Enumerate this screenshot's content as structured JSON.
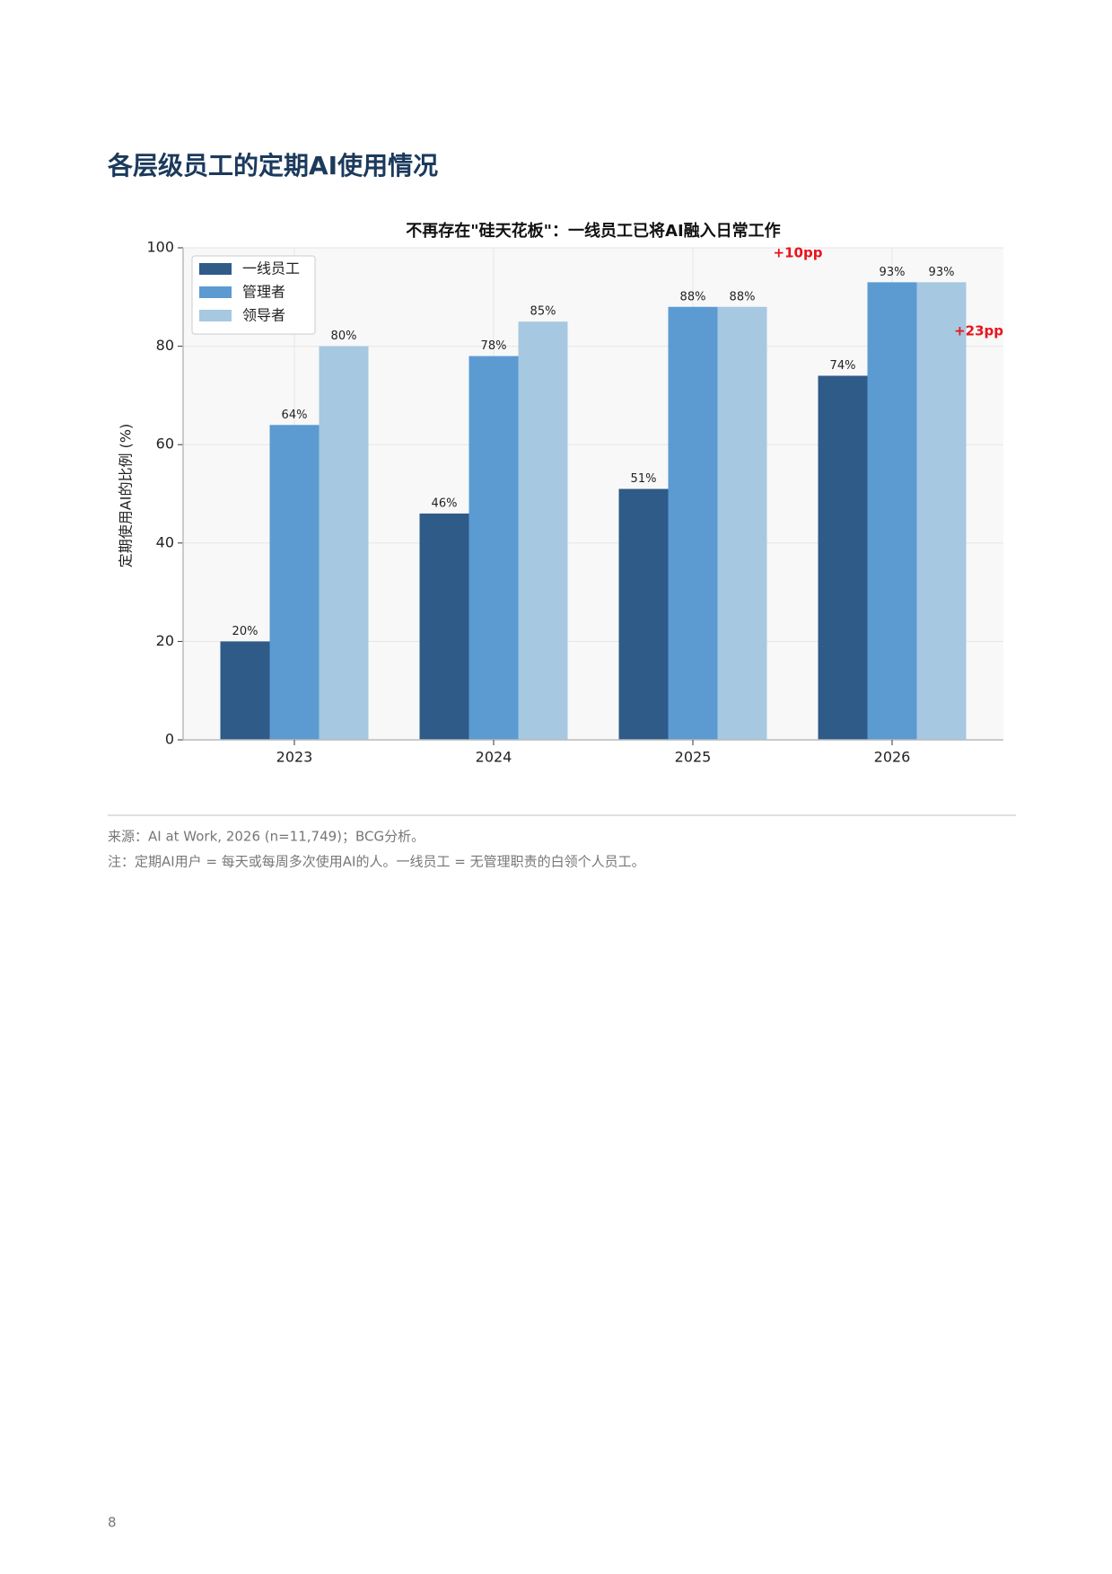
{
  "heading": "各层级员工的定期AI使用情况",
  "chart_data": {
    "type": "bar",
    "title": "不再存在\"硅天花板\"：一线员工已将AI融入日常工作",
    "y_label": "定期使用AI的比例 (%)",
    "categories": [
      "2023",
      "2024",
      "2025",
      "2026"
    ],
    "series": [
      {
        "name": "一线员工",
        "color": "#2e5b88",
        "values": [
          20,
          46,
          51,
          74
        ],
        "value_labels": [
          "20%",
          "46%",
          "51%",
          "74%"
        ]
      },
      {
        "name": "管理者",
        "color": "#5b9bd2",
        "values": [
          64,
          78,
          88,
          93
        ],
        "value_labels": [
          "64%",
          "78%",
          "88%",
          "93%"
        ]
      },
      {
        "name": "领导者",
        "color": "#a7c8e1",
        "values": [
          80,
          85,
          88,
          93
        ],
        "value_labels": [
          "80%",
          "85%",
          "88%",
          "93%"
        ]
      }
    ],
    "ylim": [
      0,
      100
    ],
    "yticks": [
      0,
      20,
      40,
      60,
      80,
      100
    ],
    "grid": true,
    "legend": "upper left",
    "annotations": [
      {
        "text": "+10pp"
      },
      {
        "text": "+23pp"
      }
    ]
  },
  "footer": {
    "source": "来源：AI at Work, 2026 (n=11,749)；BCG分析。",
    "note": "注：定期AI用户 = 每天或每周多次使用AI的人。一线员工 = 无管理职责的白领个人员工。"
  },
  "page_number": "8"
}
